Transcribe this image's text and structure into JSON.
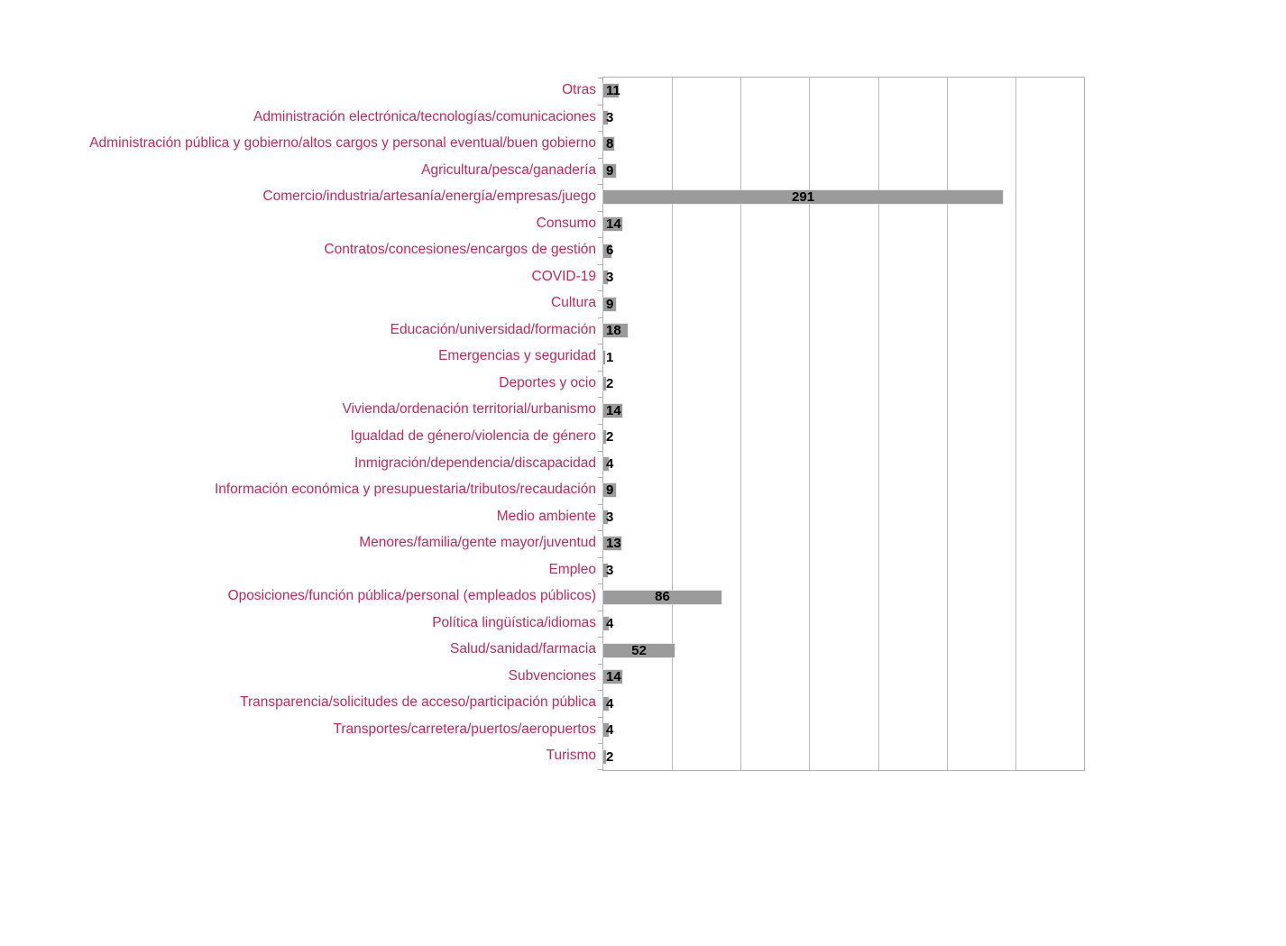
{
  "chart_data": {
    "type": "bar",
    "orientation": "horizontal",
    "title": "",
    "xlabel": "",
    "ylabel": "",
    "legend": "none",
    "grid": true,
    "grid_step": 50,
    "xlim": [
      0,
      350
    ],
    "categories": [
      "Otras",
      "Administración electrónica/tecnologías/comunicaciones",
      "Administración pública y gobierno/altos cargos y personal eventual/buen gobierno",
      "Agricultura/pesca/ganadería",
      "Comercio/industria/artesanía/energía/empresas/juego",
      "Consumo",
      "Contratos/concesiones/encargos de gestión",
      "COVID-19",
      "Cultura",
      "Educación/universidad/formación",
      "Emergencias y seguridad",
      "Deportes y ocio",
      "Vivienda/ordenación territorial/urbanismo",
      "Igualdad de género/violencia de género",
      "Inmigración/dependencia/discapacidad",
      "Información económica y presupuestaria/tributos/recaudación",
      "Medio ambiente",
      "Menores/familia/gente mayor/juventud",
      "Empleo",
      "Oposiciones/función pública/personal (empleados públicos)",
      "Política lingüística/idiomas",
      "Salud/sanidad/farmacia",
      "Subvenciones",
      "Transparencia/solicitudes de acceso/participación pública",
      "Transportes/carretera/puertos/aeropuertos",
      "Turismo"
    ],
    "values": [
      11,
      3,
      8,
      9,
      291,
      14,
      6,
      3,
      9,
      18,
      1,
      2,
      14,
      2,
      4,
      9,
      3,
      13,
      3,
      86,
      4,
      52,
      14,
      4,
      4,
      2
    ],
    "colors": {
      "bar": "#9B9B9B",
      "category_label": "#C2295B",
      "value_label": "#000000",
      "gridline": "#B8B8B8",
      "axis_border": "#B0B0B0",
      "background": "#FFFFFF"
    }
  }
}
